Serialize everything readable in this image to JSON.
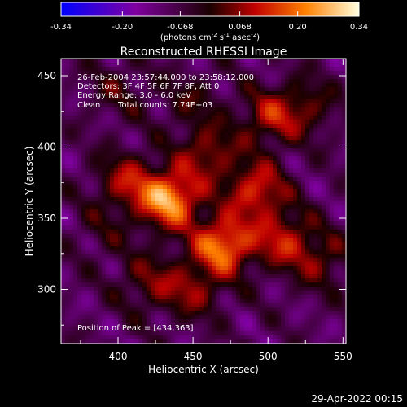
{
  "chart_data": {
    "type": "heatmap",
    "title": "Reconstructed RHESSI Image",
    "xlabel": "Heliocentric X (arcsec)",
    "ylabel": "Heliocentric Y (arcsec)",
    "xlim": [
      362,
      552
    ],
    "ylim": [
      262,
      462
    ],
    "x_ticks": [
      400,
      450,
      500,
      550
    ],
    "y_ticks": [
      300,
      350,
      400,
      450
    ],
    "colorbar": {
      "range": [
        -0.34,
        0.34
      ],
      "ticks": [
        "-0.34",
        "-0.20",
        "-0.068",
        "0.068",
        "0.20",
        "0.34"
      ],
      "units_prefix": "(photons cm",
      "units_exp1": "-2",
      "units_mid": " s",
      "units_exp2": "-1",
      "units_mid2": " asec",
      "units_exp3": "-2",
      "units_suffix": ")"
    },
    "annotations": [
      "26-Feb-2004 23:57:44.000 to 23:58:12.000",
      "Detectors: 3F 4F 5F 6F 7F 8F, Att 0",
      "Energy Range: 3.0 - 6.0 keV",
      "Clean",
      "Total counts: 7.74E+03",
      "Position of Peak = [434,363]"
    ],
    "sources": [
      {
        "x": 434,
        "y": 363,
        "amp": 0.34
      },
      {
        "x": 470,
        "y": 331,
        "amp": 0.3
      },
      {
        "x": 405,
        "y": 376,
        "amp": 0.16
      },
      {
        "x": 492,
        "y": 369,
        "amp": 0.22
      },
      {
        "x": 510,
        "y": 335,
        "amp": 0.18
      },
      {
        "x": 500,
        "y": 420,
        "amp": 0.16
      },
      {
        "x": 525,
        "y": 428,
        "amp": 0.12
      },
      {
        "x": 420,
        "y": 305,
        "amp": 0.12
      },
      {
        "x": 450,
        "y": 300,
        "amp": 0.14
      },
      {
        "x": 535,
        "y": 320,
        "amp": 0.12
      },
      {
        "x": 448,
        "y": 432,
        "amp": 0.08
      },
      {
        "x": 400,
        "y": 440,
        "amp": 0.08
      },
      {
        "x": 460,
        "y": 395,
        "amp": 0.16
      },
      {
        "x": 390,
        "y": 340,
        "amp": 0.06
      }
    ],
    "peak": [
      434,
      363
    ]
  },
  "footer": {
    "date": "29-Apr-2022 00:15"
  }
}
